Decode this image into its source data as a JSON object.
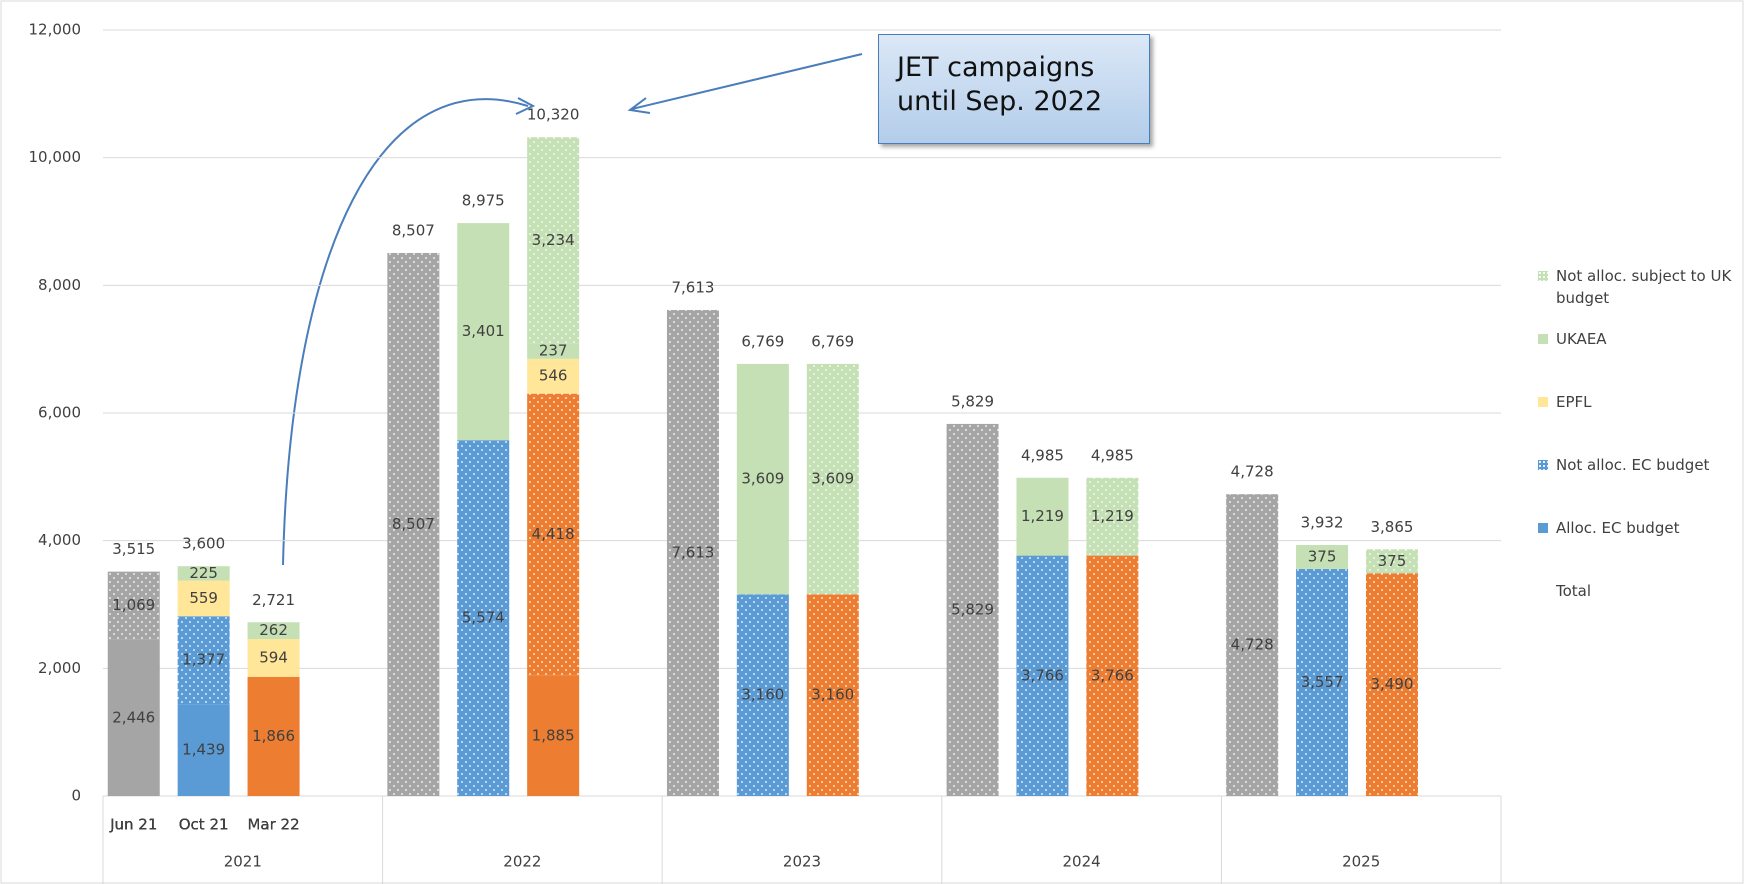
{
  "chart_data": {
    "type": "stacked_bar",
    "groups": [
      "2021",
      "2022",
      "2023",
      "2024",
      "2025"
    ],
    "subcategories": [
      "Jun 21",
      "Oct 21",
      "Mar 22"
    ],
    "subcategory_colors": [
      "#a5a5a5",
      "#5b9bd5",
      "#ed7d31"
    ],
    "ylim": [
      0,
      12000
    ],
    "yticks": [
      {
        "value": 0,
        "label": "0"
      },
      {
        "value": 2000,
        "label": "2,000"
      },
      {
        "value": 4000,
        "label": "4,000"
      },
      {
        "value": 6000,
        "label": "6,000"
      },
      {
        "value": 8000,
        "label": "8,000"
      },
      {
        "value": 10000,
        "label": "10,000"
      },
      {
        "value": 12000,
        "label": "12,000"
      }
    ],
    "grid": true,
    "legend": "right",
    "annotation": "JET campaigns until Sep. 2022",
    "series": [
      {
        "name": "Alloc. EC budget",
        "color": "#5b9bd5",
        "dotted": false,
        "recolor_by_subcategory": true,
        "values": [
          2446,
          1439,
          1866,
          null,
          null,
          1885,
          null,
          null,
          null,
          null,
          null,
          null,
          null,
          null,
          null
        ],
        "value_labels": [
          "2,446",
          "1,439",
          "1,866",
          null,
          null,
          "1,885",
          null,
          null,
          null,
          null,
          null,
          null,
          null,
          null,
          null
        ]
      },
      {
        "name": "Not alloc. EC budget",
        "color": "#5b9bd5",
        "dotted": true,
        "recolor_by_subcategory": true,
        "values": [
          1069,
          1377,
          null,
          8507,
          5574,
          4418,
          7613,
          3160,
          3160,
          5829,
          3766,
          3766,
          4728,
          3557,
          3490
        ],
        "value_labels": [
          "1,069",
          "1,377",
          null,
          "8,507",
          "5,574",
          "4,418",
          "7,613",
          "3,160",
          "3,160",
          "5,829",
          "3,766",
          "3,766",
          "4,728",
          "3,557",
          "3,490"
        ]
      },
      {
        "name": "EPFL",
        "color": "#ffe699",
        "dotted": false,
        "recolor_by_subcategory": false,
        "values": [
          null,
          559,
          594,
          null,
          null,
          546,
          null,
          null,
          null,
          null,
          null,
          null,
          null,
          null,
          null
        ]
      },
      {
        "name": "UKAEA",
        "color": "#c5e0b4",
        "dotted": false,
        "recolor_by_subcategory": false,
        "values": [
          null,
          225,
          262,
          null,
          3401,
          237,
          null,
          3609,
          null,
          null,
          1219,
          null,
          null,
          375,
          null
        ],
        "value_labels": [
          null,
          "225",
          "262",
          null,
          "3,401",
          "237",
          null,
          "3,609",
          null,
          null,
          "1,219",
          null,
          null,
          "375",
          null
        ]
      },
      {
        "name": "Not alloc. subject to UK budget",
        "color": "#c5e0b4",
        "dotted": true,
        "recolor_by_subcategory": false,
        "values": [
          null,
          null,
          null,
          null,
          null,
          3234,
          null,
          null,
          3609,
          null,
          null,
          1219,
          null,
          null,
          375
        ],
        "value_labels": [
          null,
          null,
          null,
          null,
          null,
          "3,234",
          null,
          null,
          "3,609",
          null,
          null,
          "1,219",
          null,
          null,
          "375"
        ]
      },
      {
        "name": "Total",
        "color": "none",
        "total": true,
        "values": [
          3515,
          3600,
          2721,
          8507,
          8975,
          10320,
          7613,
          6769,
          6769,
          5829,
          4985,
          4985,
          4728,
          3932,
          3865
        ],
        "value_labels": [
          "3,515",
          "3,600",
          "2,721",
          "8,507",
          "8,975",
          "10,320",
          "7,613",
          "6,769",
          "6,769",
          "5,829",
          "4,985",
          "4,985",
          "4,728",
          "3,932",
          "3,865"
        ]
      }
    ]
  }
}
